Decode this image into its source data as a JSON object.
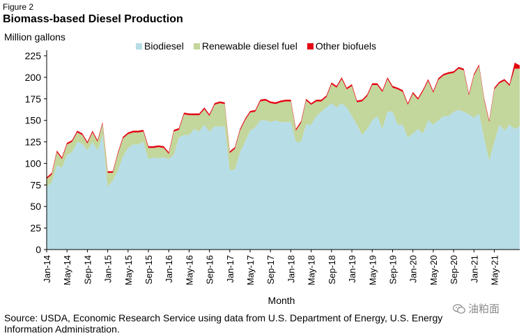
{
  "figure_label": "Figure 2",
  "chart_data": {
    "type": "area",
    "stacked": true,
    "title": "Biomass-based Diesel Production",
    "ylabel": "Million gallons",
    "xlabel": "Month",
    "ylim": [
      0,
      225
    ],
    "yticks": [
      0,
      25,
      50,
      75,
      100,
      125,
      150,
      175,
      200,
      225
    ],
    "grid": false,
    "legend_position": "top",
    "x_start": "2014-01",
    "x_tick_labels": [
      "Jan-14",
      "May-14",
      "Sep-14",
      "Jan-15",
      "May-15",
      "Sep-15",
      "Jan-16",
      "May-16",
      "Sep-16",
      "Jan-17",
      "May-17",
      "Sep-17",
      "Jan-18",
      "May-18",
      "Sep-18",
      "Jan-19",
      "May-19",
      "Sep-19",
      "Jan-20",
      "May-20",
      "Sep-20",
      "Jan-21",
      "May-21"
    ],
    "series": [
      {
        "name": "Biodiesel",
        "color": "#b7dde7",
        "values": [
          73,
          78,
          98,
          95,
          110,
          113,
          125,
          123,
          115,
          125,
          115,
          133,
          73,
          80,
          92,
          108,
          118,
          122,
          122,
          125,
          105,
          107,
          106,
          107,
          105,
          110,
          130,
          133,
          133,
          140,
          137,
          145,
          137,
          143,
          143,
          143,
          92,
          93,
          113,
          125,
          138,
          142,
          150,
          150,
          148,
          150,
          148,
          148,
          148,
          125,
          125,
          145,
          145,
          155,
          160,
          165,
          170,
          165,
          170,
          165,
          155,
          145,
          133,
          140,
          150,
          155,
          140,
          160,
          160,
          145,
          145,
          130,
          135,
          140,
          135,
          150,
          145,
          150,
          155,
          155,
          160,
          162,
          160,
          157,
          153,
          158,
          130,
          103,
          125,
          145,
          138,
          145,
          140,
          143
        ]
      },
      {
        "name": "Renewable diesel fuel",
        "color": "#c3d69b",
        "values": [
          9,
          9,
          15,
          10,
          12,
          12,
          11,
          10,
          8,
          11,
          10,
          13,
          16,
          9,
          19,
          21,
          16,
          14,
          14,
          12,
          13,
          11,
          13,
          11,
          6,
          27,
          9,
          24,
          23,
          16,
          19,
          18,
          18,
          25,
          27,
          26,
          20,
          24,
          25,
          25,
          21,
          18,
          22,
          23,
          22,
          19,
          23,
          24,
          24,
          13,
          22,
          28,
          23,
          17,
          12,
          12,
          22,
          23,
          28,
          21,
          35,
          26,
          39,
          38,
          41,
          36,
          43,
          38,
          28,
          41,
          38,
          38,
          46,
          34,
          49,
          46,
          37,
          47,
          47,
          49,
          45,
          48,
          48,
          22,
          49,
          55,
          44,
          45,
          61,
          48,
          58,
          45,
          70,
          67
        ]
      },
      {
        "name": "Other biofuels",
        "color": "#e30613",
        "values": [
          2,
          2,
          2,
          2,
          2,
          2,
          2,
          2,
          2,
          2,
          2,
          2,
          2,
          2,
          2,
          2,
          2,
          2,
          2,
          2,
          2,
          2,
          2,
          2,
          2,
          2,
          2,
          2,
          2,
          2,
          2,
          2,
          2,
          2,
          2,
          2,
          2,
          2,
          2,
          2,
          2,
          2,
          2,
          2,
          2,
          2,
          2,
          2,
          2,
          2,
          2,
          2,
          2,
          2,
          2,
          2,
          2,
          2,
          2,
          2,
          2,
          2,
          2,
          2,
          2,
          2,
          2,
          2,
          2,
          2,
          2,
          2,
          2,
          2,
          2,
          2,
          2,
          2,
          2,
          2,
          2,
          2,
          2,
          2,
          2,
          2,
          2,
          2,
          2,
          2,
          2,
          2,
          7,
          4
        ]
      }
    ]
  },
  "source_text": "Source: USDA, Economic Research Service using data from U.S. Department of Energy, U.S. Energy Information Administration.",
  "watermark": "油粕面"
}
